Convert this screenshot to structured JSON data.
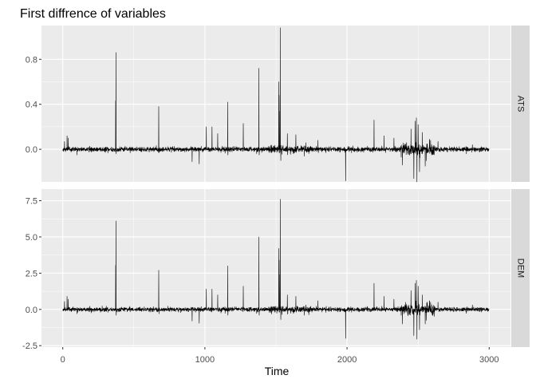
{
  "chart_data": {
    "type": "line",
    "title": "First diffrence of variables",
    "xlabel": "Time",
    "ylabel": "",
    "xlim": [
      0,
      3000
    ],
    "x_ticks": [
      0,
      1000,
      2000,
      3000
    ],
    "x_tick_labels": [
      "0",
      "1000",
      "2000",
      "3000"
    ],
    "n_points": 3000,
    "grid": true,
    "facet_layout": "stacked rows, free y scales, strip labels on right",
    "colors": {
      "panel_bg": "#ebebeb",
      "grid_major": "#ffffff",
      "strip_bg": "#d9d9d9",
      "line": "#000000"
    },
    "panels": [
      {
        "strip_label": "ATS",
        "ylim": [
          -0.29,
          1.1
        ],
        "y_ticks": [
          0.0,
          0.4,
          0.8
        ],
        "y_tick_labels": [
          "0.0",
          "0.4",
          "0.8"
        ],
        "baseline_noise_sd": 0.014,
        "spikes": [
          {
            "x": 12,
            "y": 0.07
          },
          {
            "x": 30,
            "y": 0.12
          },
          {
            "x": 38,
            "y": 0.1
          },
          {
            "x": 100,
            "y": -0.05
          },
          {
            "x": 372,
            "y": 0.43
          },
          {
            "x": 374,
            "y": 0.86
          },
          {
            "x": 376,
            "y": -0.04
          },
          {
            "x": 675,
            "y": 0.38
          },
          {
            "x": 677,
            "y": -0.03
          },
          {
            "x": 910,
            "y": -0.11
          },
          {
            "x": 960,
            "y": -0.13
          },
          {
            "x": 1010,
            "y": 0.2
          },
          {
            "x": 1050,
            "y": 0.2
          },
          {
            "x": 1090,
            "y": 0.14
          },
          {
            "x": 1160,
            "y": 0.42
          },
          {
            "x": 1162,
            "y": -0.05
          },
          {
            "x": 1270,
            "y": 0.23
          },
          {
            "x": 1380,
            "y": 0.72
          },
          {
            "x": 1382,
            "y": -0.05
          },
          {
            "x": 1520,
            "y": 0.6
          },
          {
            "x": 1522,
            "y": 0.48
          },
          {
            "x": 1528,
            "y": 0.34
          },
          {
            "x": 1530,
            "y": 1.08
          },
          {
            "x": 1534,
            "y": -0.1
          },
          {
            "x": 1580,
            "y": 0.14
          },
          {
            "x": 1640,
            "y": 0.13
          },
          {
            "x": 1700,
            "y": -0.06
          },
          {
            "x": 1795,
            "y": 0.08
          },
          {
            "x": 1990,
            "y": -0.28
          },
          {
            "x": 2190,
            "y": 0.26
          },
          {
            "x": 2260,
            "y": 0.12
          },
          {
            "x": 2330,
            "y": 0.1
          },
          {
            "x": 2390,
            "y": -0.14
          },
          {
            "x": 2450,
            "y": 0.18
          },
          {
            "x": 2470,
            "y": -0.26
          },
          {
            "x": 2480,
            "y": 0.25
          },
          {
            "x": 2488,
            "y": 0.28
          },
          {
            "x": 2492,
            "y": -0.29
          },
          {
            "x": 2500,
            "y": 0.22
          },
          {
            "x": 2510,
            "y": -0.2
          },
          {
            "x": 2530,
            "y": 0.15
          },
          {
            "x": 2550,
            "y": -0.15
          },
          {
            "x": 2580,
            "y": 0.09
          },
          {
            "x": 2640,
            "y": 0.07
          }
        ]
      },
      {
        "strip_label": "DEM",
        "ylim": [
          -2.6,
          8.3
        ],
        "y_ticks": [
          -2.5,
          0.0,
          2.5,
          5.0,
          7.5
        ],
        "y_tick_labels": [
          "-2.5",
          "0.0",
          "2.5",
          "5.0",
          "7.5"
        ],
        "baseline_noise_sd": 0.1,
        "spikes": [
          {
            "x": 12,
            "y": 0.55
          },
          {
            "x": 30,
            "y": 0.9
          },
          {
            "x": 38,
            "y": 0.7
          },
          {
            "x": 100,
            "y": -0.3
          },
          {
            "x": 372,
            "y": 3.05
          },
          {
            "x": 374,
            "y": 6.1
          },
          {
            "x": 376,
            "y": -0.4
          },
          {
            "x": 675,
            "y": 2.7
          },
          {
            "x": 677,
            "y": -0.3
          },
          {
            "x": 910,
            "y": -0.8
          },
          {
            "x": 960,
            "y": -0.95
          },
          {
            "x": 1010,
            "y": 1.4
          },
          {
            "x": 1050,
            "y": 1.4
          },
          {
            "x": 1090,
            "y": 1.0
          },
          {
            "x": 1160,
            "y": 3.0
          },
          {
            "x": 1162,
            "y": -0.4
          },
          {
            "x": 1270,
            "y": 1.6
          },
          {
            "x": 1380,
            "y": 5.0
          },
          {
            "x": 1382,
            "y": -0.4
          },
          {
            "x": 1520,
            "y": 4.2
          },
          {
            "x": 1522,
            "y": 3.4
          },
          {
            "x": 1528,
            "y": 2.4
          },
          {
            "x": 1530,
            "y": 7.6
          },
          {
            "x": 1534,
            "y": -0.7
          },
          {
            "x": 1580,
            "y": 1.0
          },
          {
            "x": 1640,
            "y": 0.9
          },
          {
            "x": 1700,
            "y": -0.4
          },
          {
            "x": 1795,
            "y": 0.6
          },
          {
            "x": 1990,
            "y": -2.0
          },
          {
            "x": 2190,
            "y": 1.8
          },
          {
            "x": 2260,
            "y": 0.9
          },
          {
            "x": 2330,
            "y": 0.7
          },
          {
            "x": 2390,
            "y": -1.0
          },
          {
            "x": 2450,
            "y": 1.3
          },
          {
            "x": 2470,
            "y": -1.8
          },
          {
            "x": 2480,
            "y": 1.8
          },
          {
            "x": 2488,
            "y": 2.0
          },
          {
            "x": 2492,
            "y": -2.05
          },
          {
            "x": 2500,
            "y": 1.6
          },
          {
            "x": 2510,
            "y": -1.4
          },
          {
            "x": 2530,
            "y": 1.0
          },
          {
            "x": 2550,
            "y": -1.0
          },
          {
            "x": 2580,
            "y": 0.6
          },
          {
            "x": 2640,
            "y": 0.5
          }
        ]
      }
    ]
  }
}
